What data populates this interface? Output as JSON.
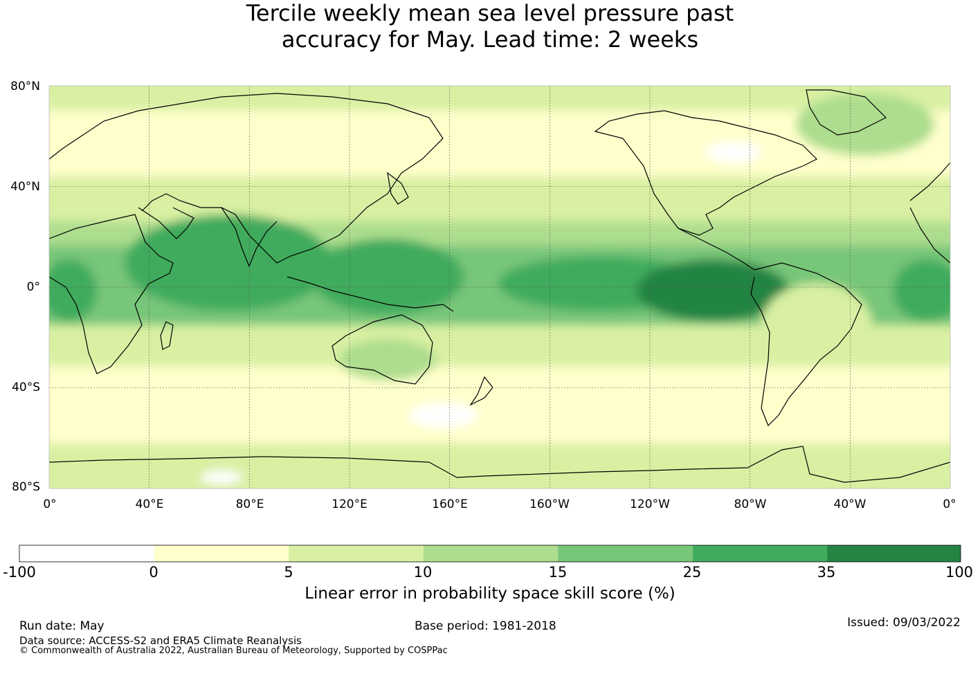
{
  "title": {
    "line1": "Tercile weekly mean sea level pressure past",
    "line2": "accuracy for May. Lead time: 2 weeks"
  },
  "map": {
    "projection": "equirectangular, centred on 180°",
    "lat_labels": [
      "80°N",
      "40°N",
      "0°",
      "40°S",
      "80°S"
    ],
    "lon_labels": [
      "0°",
      "40°E",
      "80°E",
      "120°E",
      "160°E",
      "160°W",
      "120°W",
      "80°W",
      "40°W",
      "0°"
    ],
    "zones": [
      {
        "region": "north polar / high latitudes",
        "class": "5-10"
      },
      {
        "region": "northern mid-latitudes",
        "class": "0-5"
      },
      {
        "region": "northern subtropics",
        "class": "5-10"
      },
      {
        "region": "tropics",
        "class": "15-25"
      },
      {
        "region": "tropical core (Indian Ocean, Maritime Continent, western Pacific)",
        "class": "25-35"
      },
      {
        "region": "eastern equatorial Pacific",
        "class": "35-100"
      },
      {
        "region": "southern subtropics",
        "class": "10-15"
      },
      {
        "region": "southern mid-latitudes",
        "class": "0-5"
      },
      {
        "region": "Southern Ocean",
        "class": "5-10"
      }
    ]
  },
  "colorbar": {
    "ticks": [
      "-100",
      "0",
      "5",
      "10",
      "15",
      "25",
      "35",
      "100"
    ],
    "colors": [
      "#ffffff",
      "#ffffcc",
      "#d9f0a3",
      "#addd8e",
      "#78c679",
      "#41ab5d",
      "#238443"
    ],
    "label": "Linear error in probability space skill score (%)"
  },
  "footer": {
    "run_date": "Run date: May",
    "base_period": "Base period: 1981-2018",
    "issued": "Issued: 09/03/2022",
    "data_source": "Data source: ACCESS-S2 and ERA5 Climate Reanalysis",
    "copyright": "© Commonwealth of Australia 2022, Australian Bureau of Meteorology, Supported by COSPPac"
  }
}
